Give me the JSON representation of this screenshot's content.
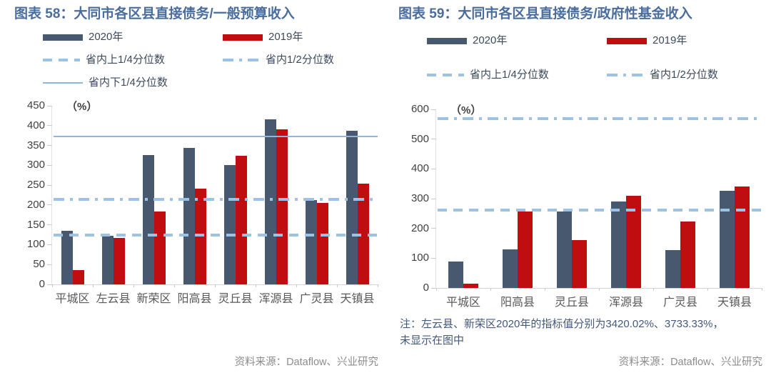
{
  "colors": {
    "title_text": "#4A6D9E",
    "bar_2020": "#48596F",
    "bar_2019": "#C00D10",
    "quantile_dash": "#9CC2E5",
    "quantile_solid": "#8FB7DC",
    "axis_text": "#404040",
    "category_text": "#595959",
    "note_text": "#44587C",
    "source_text": "#8C8C8C"
  },
  "chart_data": [
    {
      "type": "bar",
      "title": "图表 58：大同市各区县直接债务/一般预算收入",
      "unit": "（%）",
      "legend_position": "top",
      "grid": false,
      "categories": [
        "平城区",
        "左云县",
        "新荣区",
        "阳高县",
        "灵丘县",
        "浑源县",
        "广灵县",
        "天镇县"
      ],
      "series": [
        {
          "name": "2020年",
          "color": "#48596F",
          "values": [
            135,
            123,
            326,
            343,
            301,
            415,
            213,
            387
          ]
        },
        {
          "name": "2019年",
          "color": "#C00D10",
          "values": [
            36,
            117,
            183,
            242,
            324,
            390,
            205,
            253
          ]
        }
      ],
      "ref_lines": [
        {
          "name": "省内上1/4分位数",
          "style": "dashed",
          "value": 124
        },
        {
          "name": "省内1/2分位数",
          "style": "dashdot",
          "value": 214
        },
        {
          "name": "省内下1/4分位数",
          "style": "solid",
          "value": 375
        }
      ],
      "ylim": [
        0,
        450
      ],
      "ytick_step": 50,
      "note_lines": [],
      "source": "资料来源：Dataflow、兴业研究"
    },
    {
      "type": "bar",
      "title": "图表 59：大同市各区县直接债务/政府性基金收入",
      "unit": "（%）",
      "legend_position": "top",
      "grid": false,
      "categories": [
        "平城区",
        "阳高县",
        "灵丘县",
        "浑源县",
        "广灵县",
        "天镇县"
      ],
      "series": [
        {
          "name": "2020年",
          "color": "#48596F",
          "values": [
            88,
            130,
            258,
            291,
            127,
            327
          ]
        },
        {
          "name": "2019年",
          "color": "#C00D10",
          "values": [
            15,
            256,
            160,
            310,
            224,
            342
          ]
        }
      ],
      "ref_lines": [
        {
          "name": "省内上1/4分位数",
          "style": "dashed",
          "value": 262
        },
        {
          "name": "省内1/2分位数",
          "style": "dashdot",
          "value": 568
        }
      ],
      "ylim": [
        0,
        600
      ],
      "ytick_step": 100,
      "note_lines": [
        "注：左云县、新荣区2020年的指标值分别为3420.02%、3733.33%，",
        "未显示在图中"
      ],
      "source": "资料来源：Dataflow、兴业研究"
    }
  ]
}
